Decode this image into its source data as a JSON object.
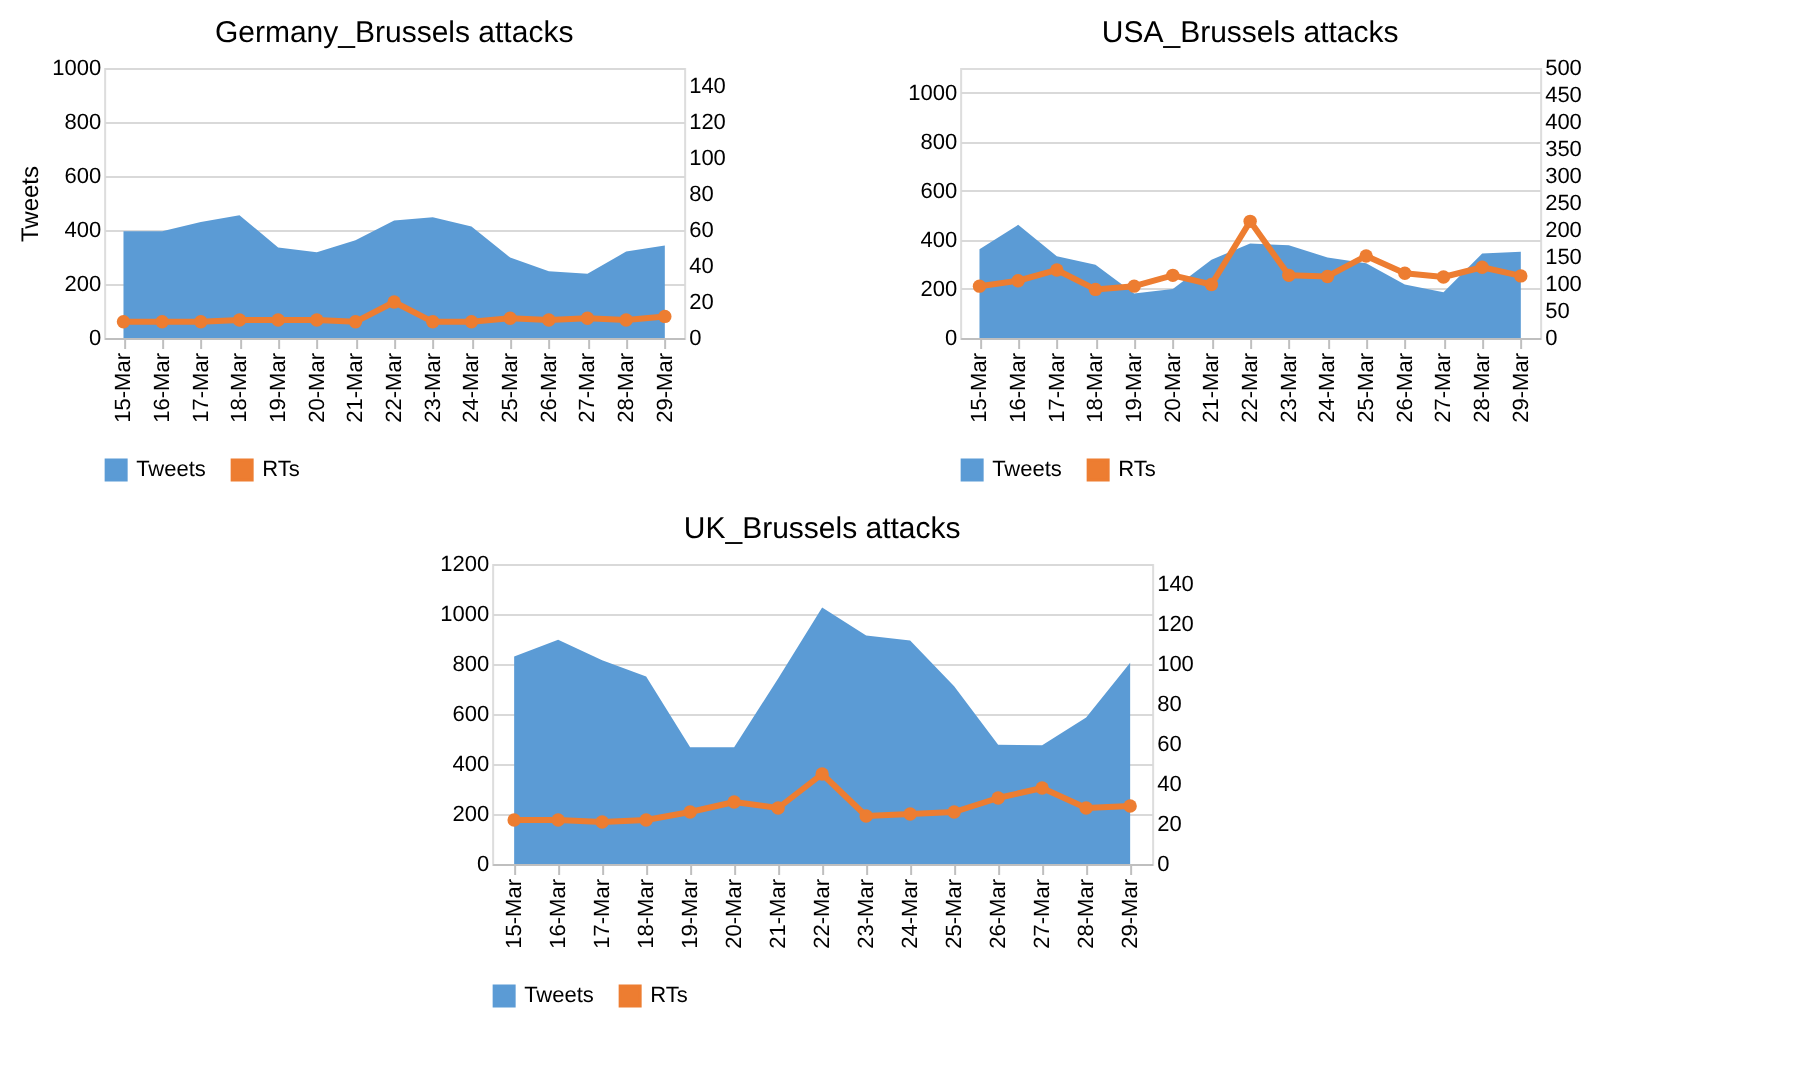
{
  "chart_data": [
    {
      "type": "area",
      "title": "Germany_Brussels attacks",
      "ylabel": "Tweets",
      "categories": [
        "15-Mar",
        "16-Mar",
        "17-Mar",
        "18-Mar",
        "19-Mar",
        "20-Mar",
        "21-Mar",
        "22-Mar",
        "23-Mar",
        "24-Mar",
        "25-Mar",
        "26-Mar",
        "27-Mar",
        "28-Mar",
        "29-Mar"
      ],
      "ylim": [
        0,
        1000
      ],
      "yticks": [
        0,
        200,
        400,
        600,
        800,
        1000
      ],
      "y2lim": [
        0,
        150
      ],
      "y2ticks": [
        0,
        20,
        40,
        60,
        80,
        100,
        120,
        140
      ],
      "grid": "y",
      "legend": "bottom",
      "series": [
        {
          "name": "Tweets",
          "color": "#5b9bd5",
          "values": [
            395,
            395,
            430,
            455,
            335,
            318,
            362,
            435,
            447,
            413,
            298,
            247,
            238,
            320,
            343
          ]
        },
        {
          "name": "RTs",
          "type": "line",
          "marker": "circle",
          "axis": "y2",
          "color": "#ed7d31",
          "values": [
            9,
            9,
            9,
            10,
            10,
            10,
            9,
            20,
            9,
            9,
            11,
            10,
            11,
            10,
            12
          ]
        }
      ]
    },
    {
      "type": "area",
      "title": "USA_Brussels attacks",
      "categories": [
        "15-Mar",
        "16-Mar",
        "17-Mar",
        "18-Mar",
        "19-Mar",
        "20-Mar",
        "21-Mar",
        "22-Mar",
        "23-Mar",
        "24-Mar",
        "25-Mar",
        "26-Mar",
        "27-Mar",
        "28-Mar",
        "29-Mar"
      ],
      "ylim": [
        0,
        1100
      ],
      "yticks": [
        0,
        200,
        400,
        600,
        800,
        1000
      ],
      "y2lim": [
        0,
        500
      ],
      "y2ticks": [
        0,
        50,
        100,
        150,
        200,
        250,
        300,
        350,
        400,
        450,
        500
      ],
      "grid": "y",
      "legend": "bottom",
      "series": [
        {
          "name": "Tweets",
          "color": "#5b9bd5",
          "values": [
            362,
            461,
            333,
            298,
            181,
            200,
            319,
            385,
            378,
            328,
            305,
            218,
            186,
            344,
            351
          ]
        },
        {
          "name": "RTs",
          "type": "line",
          "marker": "circle",
          "axis": "y2",
          "color": "#ed7d31",
          "values": [
            96,
            106,
            126,
            90,
            96,
            116,
            99,
            216,
            116,
            114,
            152,
            120,
            113,
            131,
            115
          ]
        }
      ]
    },
    {
      "type": "area",
      "title": "UK_Brussels attacks",
      "categories": [
        "15-Mar",
        "16-Mar",
        "17-Mar",
        "18-Mar",
        "19-Mar",
        "20-Mar",
        "21-Mar",
        "22-Mar",
        "23-Mar",
        "24-Mar",
        "25-Mar",
        "26-Mar",
        "27-Mar",
        "28-Mar",
        "29-Mar"
      ],
      "ylim": [
        0,
        1200
      ],
      "yticks": [
        0,
        200,
        400,
        600,
        800,
        1000,
        1200
      ],
      "y2lim": [
        0,
        150
      ],
      "y2ticks": [
        0,
        20,
        40,
        60,
        80,
        100,
        120,
        140
      ],
      "grid": "y",
      "legend": "bottom",
      "series": [
        {
          "name": "Tweets",
          "color": "#5b9bd5",
          "values": [
            830,
            897,
            815,
            750,
            467,
            467,
            742,
            1026,
            914,
            894,
            711,
            477,
            475,
            586,
            805
          ]
        },
        {
          "name": "RTs",
          "type": "line",
          "marker": "circle",
          "axis": "y2",
          "color": "#ed7d31",
          "values": [
            22,
            22,
            21,
            22,
            26,
            31,
            28,
            45,
            24,
            25,
            26,
            33,
            38,
            28,
            29
          ]
        }
      ]
    }
  ]
}
